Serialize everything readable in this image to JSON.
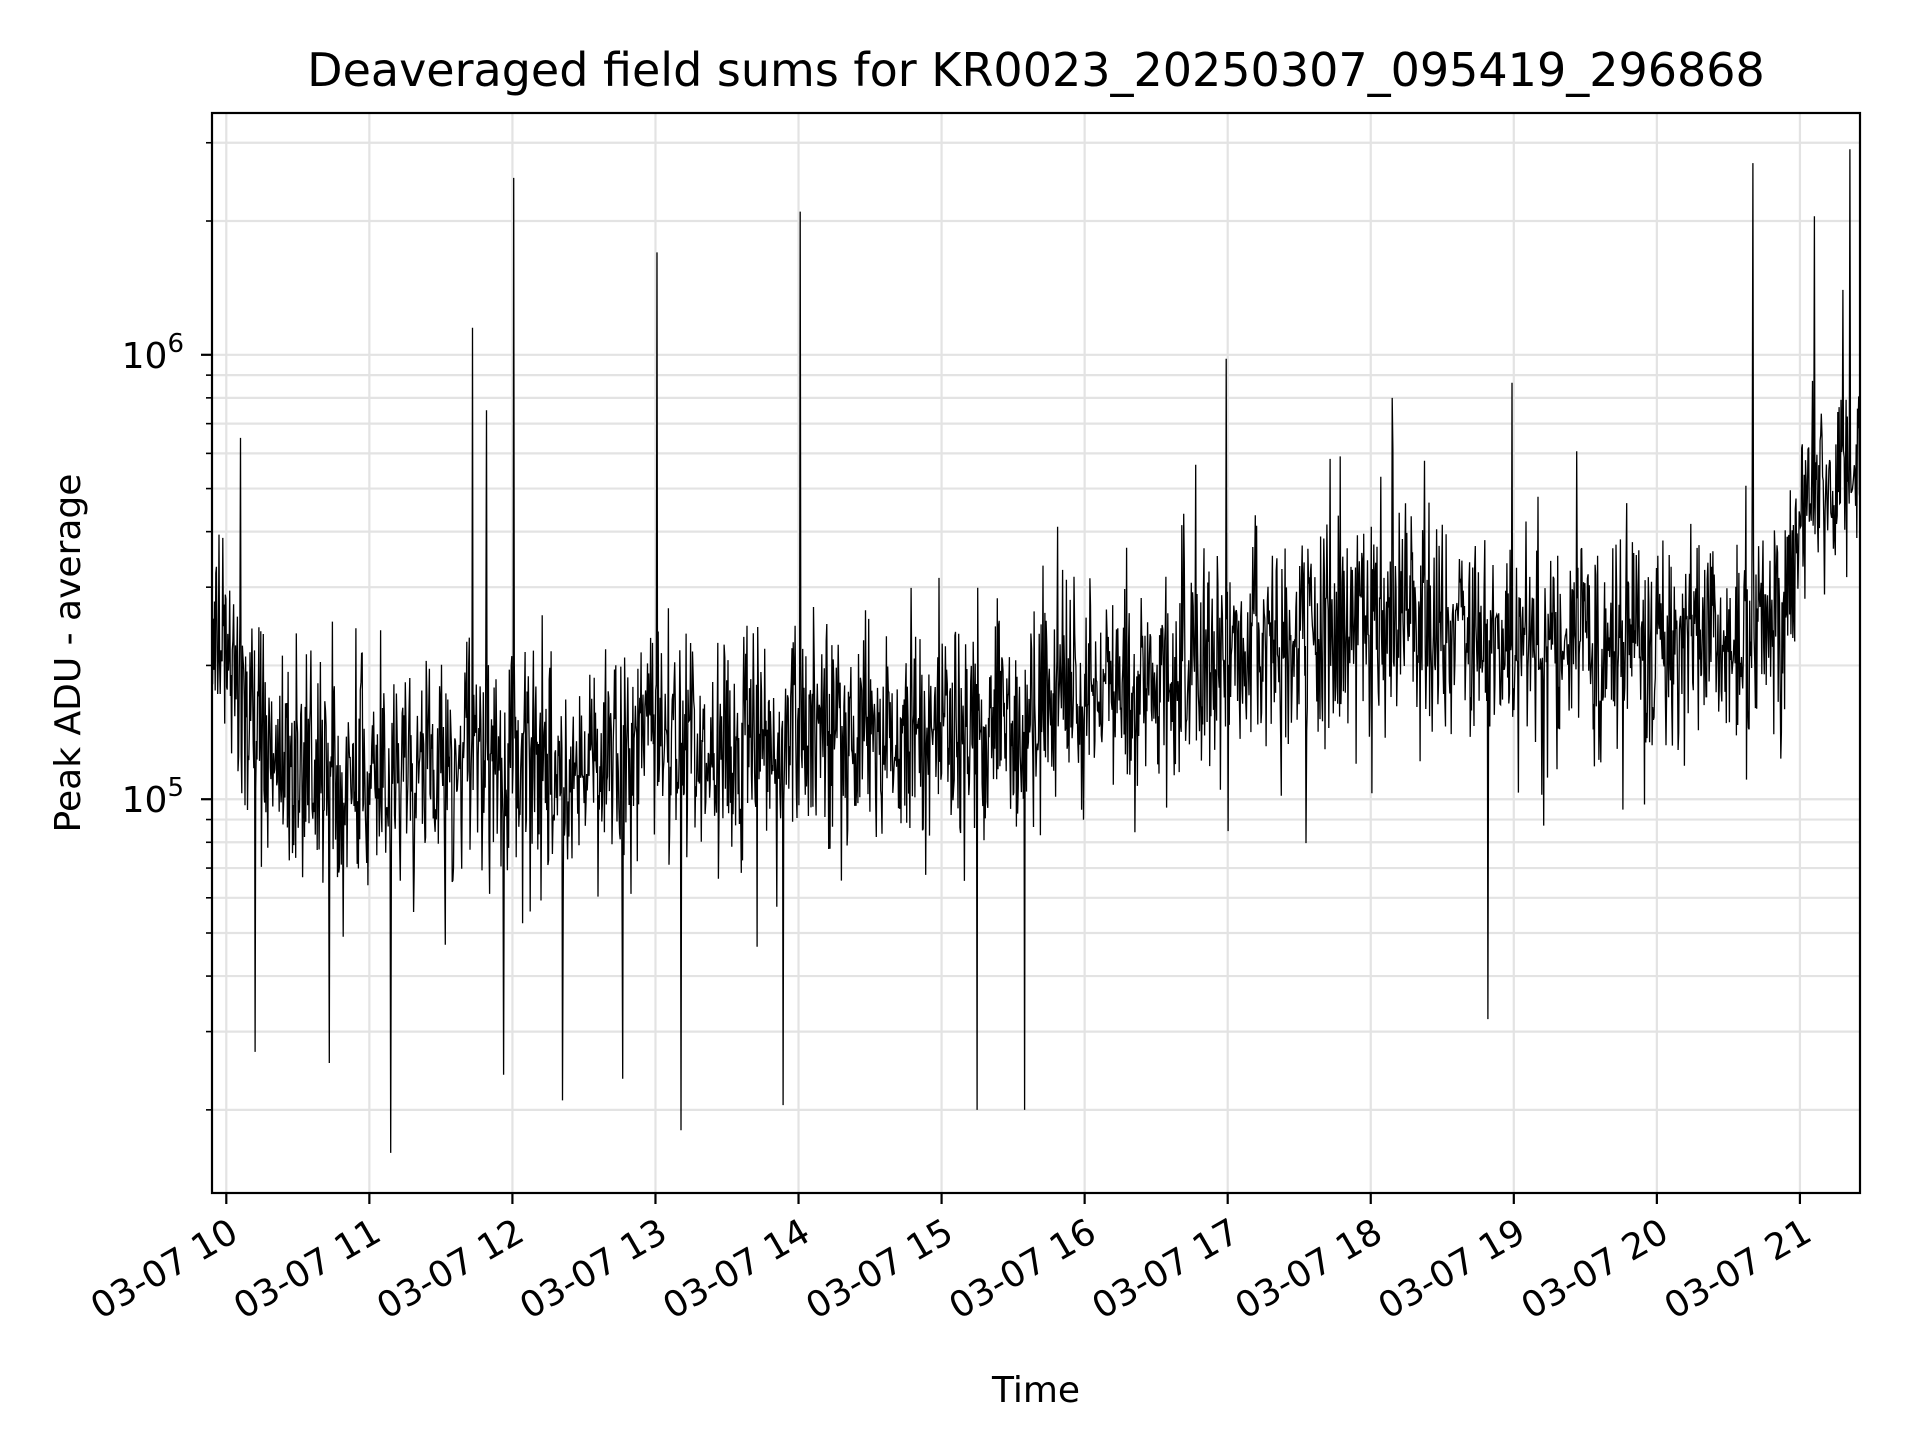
{
  "chart_data": {
    "type": "line",
    "title": "Deaveraged field sums for KR0023_20250307_095419_296868",
    "xlabel": "Time",
    "ylabel": "Peak ADU - average",
    "yscale": "log",
    "grid": true,
    "line_color": "#000000",
    "grid_color": "#e3e3e3",
    "x_start": "03-07 09:55",
    "x_end": "03-07 21:25",
    "xlim_hours": [
      9.9,
      21.42
    ],
    "ylim": [
      13000,
      3500000
    ],
    "xticks": [
      {
        "hour": 10,
        "label": "03-07 10"
      },
      {
        "hour": 11,
        "label": "03-07 11"
      },
      {
        "hour": 12,
        "label": "03-07 12"
      },
      {
        "hour": 13,
        "label": "03-07 13"
      },
      {
        "hour": 14,
        "label": "03-07 14"
      },
      {
        "hour": 15,
        "label": "03-07 15"
      },
      {
        "hour": 16,
        "label": "03-07 16"
      },
      {
        "hour": 17,
        "label": "03-07 17"
      },
      {
        "hour": 18,
        "label": "03-07 18"
      },
      {
        "hour": 19,
        "label": "03-07 19"
      },
      {
        "hour": 20,
        "label": "03-07 20"
      },
      {
        "hour": 21,
        "label": "03-07 21"
      }
    ],
    "yticks": [
      {
        "value": 100000,
        "base": "10",
        "exp": "5"
      },
      {
        "value": 1000000,
        "base": "10",
        "exp": "6"
      }
    ],
    "series": [
      {
        "baseline": [
          {
            "hour": 9.9,
            "value": 250000
          },
          {
            "hour": 10.3,
            "value": 125000
          },
          {
            "hour": 11.0,
            "value": 112000
          },
          {
            "hour": 12.0,
            "value": 120000
          },
          {
            "hour": 13.0,
            "value": 130000
          },
          {
            "hour": 14.0,
            "value": 135000
          },
          {
            "hour": 15.0,
            "value": 140000
          },
          {
            "hour": 16.0,
            "value": 165000
          },
          {
            "hour": 17.0,
            "value": 215000
          },
          {
            "hour": 18.0,
            "value": 245000
          },
          {
            "hour": 19.0,
            "value": 235000
          },
          {
            "hour": 20.0,
            "value": 225000
          },
          {
            "hour": 20.9,
            "value": 250000
          },
          {
            "hour": 21.05,
            "value": 500000
          },
          {
            "hour": 21.42,
            "value": 550000
          }
        ],
        "spikes": [
          {
            "hour": 11.72,
            "value": 1150000
          },
          {
            "hour": 11.82,
            "value": 750000
          },
          {
            "hour": 12.01,
            "value": 2500000
          },
          {
            "hour": 13.01,
            "value": 1700000
          },
          {
            "hour": 14.01,
            "value": 2100000
          },
          {
            "hour": 16.99,
            "value": 980000
          },
          {
            "hour": 18.15,
            "value": 800000
          },
          {
            "hour": 20.67,
            "value": 2700000
          },
          {
            "hour": 21.1,
            "value": 2050000
          },
          {
            "hour": 21.35,
            "value": 2900000
          },
          {
            "hour": 21.3,
            "value": 1400000
          },
          {
            "hour": 10.1,
            "value": 650000
          }
        ],
        "dips": [
          {
            "hour": 11.15,
            "value": 16000
          },
          {
            "hour": 13.18,
            "value": 18000
          },
          {
            "hour": 15.25,
            "value": 20000
          },
          {
            "hour": 15.58,
            "value": 20000
          },
          {
            "hour": 13.89,
            "value": 20500
          },
          {
            "hour": 12.35,
            "value": 21000
          },
          {
            "hour": 10.2,
            "value": 27000
          },
          {
            "hour": 10.72,
            "value": 25500
          },
          {
            "hour": 11.94,
            "value": 24000
          },
          {
            "hour": 12.77,
            "value": 23500
          },
          {
            "hour": 18.82,
            "value": 32000
          }
        ]
      }
    ]
  }
}
